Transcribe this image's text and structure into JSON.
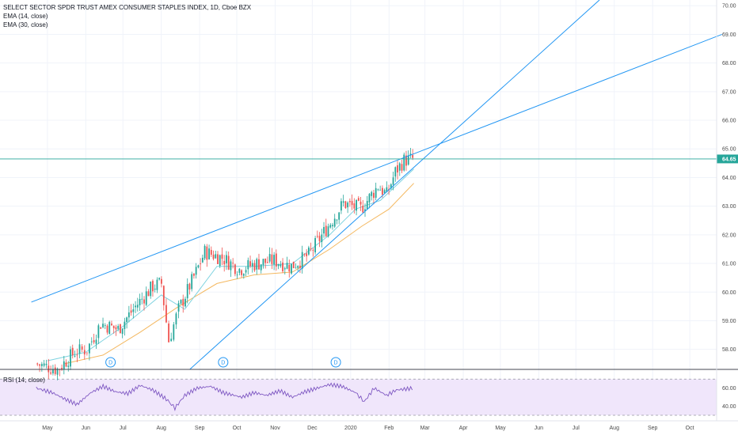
{
  "legend": {
    "title": "SELECT SECTOR SPDR TRUST AMEX CONSUMER STAPLES INDEX, 1D, Cboe BZX",
    "ema14": "EMA (14, close)",
    "ema30": "EMA (30, close)",
    "rsi": "RSI (14, close)"
  },
  "last_price_label": "64.65",
  "colors": {
    "up": "#26a69a",
    "down": "#ef5350",
    "ema14": "#7fd3e0",
    "ema30": "#f4b860",
    "trendline": "#2196f3",
    "rsi_line": "#7e57c2",
    "rsi_band": "#f0e6fb"
  },
  "dividend_marker": "D",
  "chart_data": {
    "type": "candlestick",
    "x_axis_labels": [
      "May",
      "Jun",
      "Jul",
      "Aug",
      "Sep",
      "Oct",
      "Nov",
      "Dec",
      "2020",
      "Feb",
      "Mar",
      "Apr",
      "May",
      "Jun",
      "Jul",
      "Aug",
      "Sep",
      "Oct"
    ],
    "y_axis_labels": [
      "58.00",
      "59.00",
      "60.00",
      "61.00",
      "62.00",
      "63.00",
      "64.00",
      "65.00",
      "66.00",
      "67.00",
      "68.00",
      "69.00",
      "70.00"
    ],
    "ylim": [
      57.3,
      70.2
    ],
    "last_price": 64.65,
    "dividends": [
      "2019-06-21",
      "2019-09-20",
      "2019-12-20"
    ],
    "trendlines": [
      {
        "from": [
          "2019-04-18",
          59.65
        ],
        "to": [
          "2020-10-27",
          69.0
        ]
      },
      {
        "from": [
          "2019-08-24",
          57.3
        ],
        "to": [
          "2020-07-20",
          70.2
        ]
      }
    ],
    "price_path": [
      [
        "2019-04-22",
        57.5
      ],
      [
        "2019-05-10",
        57.3
      ],
      [
        "2019-05-24",
        57.9
      ],
      [
        "2019-06-03",
        58.0
      ],
      [
        "2019-06-14",
        58.9
      ],
      [
        "2019-06-28",
        58.7
      ],
      [
        "2019-07-12",
        59.5
      ],
      [
        "2019-07-26",
        60.2
      ],
      [
        "2019-08-02",
        60.3
      ],
      [
        "2019-08-08",
        58.3
      ],
      [
        "2019-08-16",
        59.4
      ],
      [
        "2019-08-30",
        60.7
      ],
      [
        "2019-09-06",
        61.4
      ],
      [
        "2019-09-20",
        61.2
      ],
      [
        "2019-10-04",
        60.8
      ],
      [
        "2019-10-18",
        61.0
      ],
      [
        "2019-11-01",
        61.1
      ],
      [
        "2019-11-15",
        60.9
      ],
      [
        "2019-11-29",
        61.3
      ],
      [
        "2019-12-13",
        62.2
      ],
      [
        "2019-12-27",
        63.1
      ],
      [
        "2020-01-10",
        62.9
      ],
      [
        "2020-01-24",
        63.7
      ],
      [
        "2020-01-31",
        63.4
      ],
      [
        "2020-02-07",
        64.2
      ],
      [
        "2020-02-14",
        64.6
      ],
      [
        "2020-02-21",
        64.65
      ]
    ],
    "ema14_path": [
      [
        "2019-05-01",
        57.6
      ],
      [
        "2019-06-01",
        57.9
      ],
      [
        "2019-07-01",
        58.8
      ],
      [
        "2019-08-01",
        59.9
      ],
      [
        "2019-08-20",
        59.4
      ],
      [
        "2019-09-15",
        60.9
      ],
      [
        "2019-10-15",
        60.9
      ],
      [
        "2019-11-15",
        61.0
      ],
      [
        "2019-12-15",
        62.0
      ],
      [
        "2020-01-05",
        62.9
      ],
      [
        "2020-01-25",
        63.2
      ],
      [
        "2020-02-21",
        64.3
      ]
    ],
    "ema30_path": [
      [
        "2019-05-15",
        57.5
      ],
      [
        "2019-06-15",
        57.8
      ],
      [
        "2019-07-15",
        58.6
      ],
      [
        "2019-08-15",
        59.5
      ],
      [
        "2019-09-15",
        60.3
      ],
      [
        "2019-10-15",
        60.6
      ],
      [
        "2019-11-15",
        60.7
      ],
      [
        "2019-12-15",
        61.5
      ],
      [
        "2020-01-10",
        62.3
      ],
      [
        "2020-02-01",
        62.9
      ],
      [
        "2020-02-21",
        63.8
      ]
    ],
    "rsi": {
      "ylim": [
        30,
        72
      ],
      "levels": [
        30,
        70
      ],
      "y_axis_labels": [
        "40.00",
        "60.00"
      ],
      "path": [
        [
          "2019-04-22",
          60
        ],
        [
          "2019-05-05",
          55
        ],
        [
          "2019-05-15",
          48
        ],
        [
          "2019-05-25",
          42
        ],
        [
          "2019-06-05",
          55
        ],
        [
          "2019-06-15",
          62
        ],
        [
          "2019-06-25",
          56
        ],
        [
          "2019-07-05",
          54
        ],
        [
          "2019-07-15",
          63
        ],
        [
          "2019-07-25",
          58
        ],
        [
          "2019-08-05",
          48
        ],
        [
          "2019-08-12",
          38
        ],
        [
          "2019-08-20",
          52
        ],
        [
          "2019-08-30",
          60
        ],
        [
          "2019-09-10",
          62
        ],
        [
          "2019-09-20",
          55
        ],
        [
          "2019-10-05",
          50
        ],
        [
          "2019-10-15",
          55
        ],
        [
          "2019-10-25",
          52
        ],
        [
          "2019-11-05",
          57
        ],
        [
          "2019-11-15",
          50
        ],
        [
          "2019-11-25",
          56
        ],
        [
          "2019-12-05",
          60
        ],
        [
          "2019-12-15",
          64
        ],
        [
          "2019-12-25",
          62
        ],
        [
          "2020-01-05",
          55
        ],
        [
          "2020-01-12",
          45
        ],
        [
          "2020-01-20",
          60
        ],
        [
          "2020-01-30",
          52
        ],
        [
          "2020-02-07",
          58
        ],
        [
          "2020-02-21",
          60
        ]
      ]
    }
  }
}
